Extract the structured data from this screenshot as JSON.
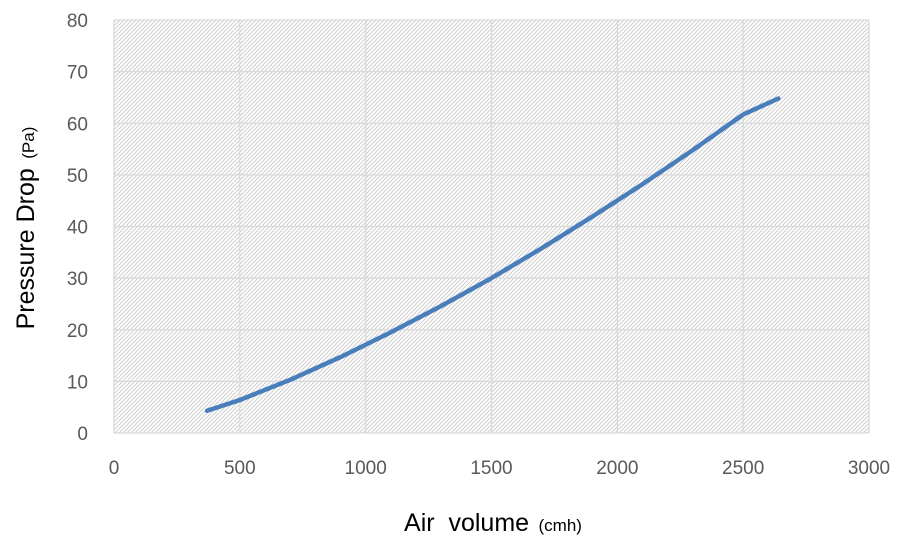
{
  "chart_data": {
    "type": "line",
    "title": "",
    "xlabel": "Air  volume",
    "xlabel_unit": "(cmh)",
    "ylabel": "Pressure Drop",
    "ylabel_unit": "(Pa)",
    "xlim": [
      0,
      3000
    ],
    "ylim": [
      0,
      80
    ],
    "x_ticks": [
      0,
      500,
      1000,
      1500,
      2000,
      2500,
      3000
    ],
    "y_ticks": [
      0,
      10,
      20,
      30,
      40,
      50,
      60,
      70,
      80
    ],
    "grid": true,
    "plot_background": "hatched",
    "series": [
      {
        "color": "#4a7ebb",
        "x": [
          370,
          500,
          700,
          900,
          1100,
          1300,
          1500,
          1700,
          1900,
          2100,
          2300,
          2500,
          2640
        ],
        "y": [
          4.3,
          6.4,
          10.3,
          14.7,
          19.5,
          24.6,
          30.0,
          35.8,
          41.9,
          48.2,
          54.8,
          61.7,
          64.8
        ]
      }
    ]
  }
}
